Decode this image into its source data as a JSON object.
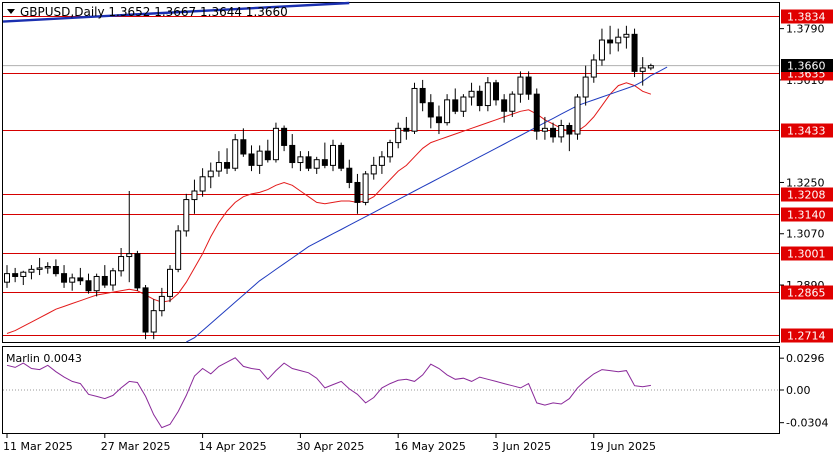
{
  "header": {
    "symbol_line": "GBPUSD,Daily  1.3652 1.3667 1.3644 1.3660"
  },
  "price_axis": {
    "ticks": [
      "1.3790",
      "1.3610",
      "1.3250",
      "1.3070",
      "1.2890"
    ],
    "current_price_label": "1.3660"
  },
  "indicator": {
    "title": "Marlin 0.0043",
    "ticks": [
      "0.0296",
      "0.00",
      "-0.0304"
    ]
  },
  "date_axis": {
    "labels": [
      "11 Mar 2025",
      "27 Mar 2025",
      "14 Apr 2025",
      "30 Apr 2025",
      "16 May 2025",
      "3 Jun 2025",
      "19 Jun 2025"
    ]
  },
  "colors": {
    "bull_candle": "#ffffff",
    "bear_candle": "#000000",
    "level_line": "#d50000",
    "level_label_bg": "#e00000",
    "ma_red": "#e31b1b",
    "ma_blue": "#1f3bbf",
    "trend_line": "#1a2fb0",
    "oscillator": "#8a2a9a"
  },
  "chart_data": [
    {
      "type": "candlestick",
      "title": "GBPUSD,Daily",
      "ylim": [
        1.269,
        1.388
      ],
      "horizontal_levels": [
        {
          "label": "1.3834",
          "value": 1.3834
        },
        {
          "label": "1.3635",
          "value": 1.3635
        },
        {
          "label": "1.3433",
          "value": 1.3433
        },
        {
          "label": "1.3208",
          "value": 1.3208
        },
        {
          "label": "1.3140",
          "value": 1.314
        },
        {
          "label": "1.3001",
          "value": 1.3001
        },
        {
          "label": "1.2865",
          "value": 1.2865
        },
        {
          "label": "1.2714",
          "value": 1.2714
        }
      ],
      "x_labels": [
        {
          "label": "11 Mar 2025",
          "index": 0
        },
        {
          "label": "27 Mar 2025",
          "index": 12
        },
        {
          "label": "14 Apr 2025",
          "index": 24
        },
        {
          "label": "30 Apr 2025",
          "index": 36
        },
        {
          "label": "16 May 2025",
          "index": 48
        },
        {
          "label": "3 Jun 2025",
          "index": 60
        },
        {
          "label": "19 Jun 2025",
          "index": 72
        }
      ],
      "trend_line": {
        "from": {
          "index": 0,
          "price": 1.3815
        },
        "to": {
          "index": 42,
          "price": 1.388
        }
      },
      "ohlc": [
        [
          1.29,
          1.296,
          1.288,
          1.293
        ],
        [
          1.293,
          1.295,
          1.29,
          1.292
        ],
        [
          1.292,
          1.294,
          1.289,
          1.2935
        ],
        [
          1.2935,
          1.296,
          1.291,
          1.2945
        ],
        [
          1.2945,
          1.2985,
          1.2925,
          1.295
        ],
        [
          1.295,
          1.297,
          1.293,
          1.2955
        ],
        [
          1.2955,
          1.298,
          1.292,
          1.293
        ],
        [
          1.293,
          1.296,
          1.288,
          1.29
        ],
        [
          1.29,
          1.293,
          1.287,
          1.2915
        ],
        [
          1.2915,
          1.295,
          1.289,
          1.2905
        ],
        [
          1.2905,
          1.293,
          1.286,
          1.287
        ],
        [
          1.287,
          1.293,
          1.285,
          1.292
        ],
        [
          1.292,
          1.296,
          1.288,
          1.289
        ],
        [
          1.289,
          1.295,
          1.287,
          1.294
        ],
        [
          1.294,
          1.302,
          1.292,
          1.299
        ],
        [
          1.299,
          1.322,
          1.29,
          1.3
        ],
        [
          1.3,
          1.301,
          1.287,
          1.288
        ],
        [
          1.288,
          1.289,
          1.27,
          1.2725
        ],
        [
          1.2725,
          1.284,
          1.27,
          1.28
        ],
        [
          1.28,
          1.288,
          1.278,
          1.285
        ],
        [
          1.285,
          1.296,
          1.283,
          1.2945
        ],
        [
          1.2945,
          1.31,
          1.2935,
          1.308
        ],
        [
          1.308,
          1.321,
          1.306,
          1.319
        ],
        [
          1.319,
          1.326,
          1.314,
          1.322
        ],
        [
          1.322,
          1.33,
          1.32,
          1.327
        ],
        [
          1.327,
          1.332,
          1.323,
          1.329
        ],
        [
          1.329,
          1.336,
          1.327,
          1.332
        ],
        [
          1.332,
          1.337,
          1.328,
          1.33
        ],
        [
          1.33,
          1.342,
          1.329,
          1.34
        ],
        [
          1.34,
          1.344,
          1.334,
          1.335
        ],
        [
          1.335,
          1.338,
          1.329,
          1.331
        ],
        [
          1.331,
          1.338,
          1.328,
          1.336
        ],
        [
          1.336,
          1.34,
          1.332,
          1.333
        ],
        [
          1.333,
          1.346,
          1.332,
          1.344
        ],
        [
          1.344,
          1.345,
          1.336,
          1.338
        ],
        [
          1.338,
          1.342,
          1.33,
          1.332
        ],
        [
          1.332,
          1.336,
          1.329,
          1.334
        ],
        [
          1.334,
          1.336,
          1.329,
          1.33
        ],
        [
          1.33,
          1.334,
          1.328,
          1.333
        ],
        [
          1.333,
          1.339,
          1.33,
          1.331
        ],
        [
          1.331,
          1.34,
          1.329,
          1.338
        ],
        [
          1.338,
          1.339,
          1.329,
          1.33
        ],
        [
          1.33,
          1.333,
          1.323,
          1.325
        ],
        [
          1.325,
          1.328,
          1.314,
          1.318
        ],
        [
          1.318,
          1.329,
          1.317,
          1.328
        ],
        [
          1.328,
          1.334,
          1.326,
          1.331
        ],
        [
          1.331,
          1.336,
          1.328,
          1.334
        ],
        [
          1.334,
          1.34,
          1.332,
          1.339
        ],
        [
          1.339,
          1.346,
          1.337,
          1.344
        ],
        [
          1.344,
          1.348,
          1.34,
          1.343
        ],
        [
          1.343,
          1.36,
          1.342,
          1.358
        ],
        [
          1.358,
          1.361,
          1.35,
          1.353
        ],
        [
          1.353,
          1.356,
          1.344,
          1.348
        ],
        [
          1.348,
          1.352,
          1.342,
          1.346
        ],
        [
          1.346,
          1.356,
          1.345,
          1.354
        ],
        [
          1.354,
          1.358,
          1.349,
          1.35
        ],
        [
          1.35,
          1.356,
          1.348,
          1.355
        ],
        [
          1.355,
          1.36,
          1.352,
          1.357
        ],
        [
          1.357,
          1.359,
          1.35,
          1.352
        ],
        [
          1.352,
          1.362,
          1.35,
          1.36
        ],
        [
          1.36,
          1.361,
          1.352,
          1.354
        ],
        [
          1.354,
          1.356,
          1.346,
          1.35
        ],
        [
          1.35,
          1.357,
          1.348,
          1.356
        ],
        [
          1.356,
          1.364,
          1.353,
          1.362
        ],
        [
          1.362,
          1.364,
          1.354,
          1.356
        ],
        [
          1.356,
          1.358,
          1.34,
          1.343
        ],
        [
          1.343,
          1.348,
          1.34,
          1.344
        ],
        [
          1.344,
          1.346,
          1.339,
          1.341
        ],
        [
          1.341,
          1.347,
          1.339,
          1.345
        ],
        [
          1.345,
          1.346,
          1.336,
          1.342
        ],
        [
          1.342,
          1.356,
          1.34,
          1.355
        ],
        [
          1.355,
          1.366,
          1.352,
          1.362
        ],
        [
          1.362,
          1.37,
          1.36,
          1.368
        ],
        [
          1.368,
          1.379,
          1.366,
          1.375
        ],
        [
          1.375,
          1.38,
          1.37,
          1.374
        ],
        [
          1.374,
          1.379,
          1.371,
          1.376
        ],
        [
          1.376,
          1.38,
          1.372,
          1.377
        ],
        [
          1.377,
          1.379,
          1.362,
          1.364
        ],
        [
          1.364,
          1.369,
          1.359,
          1.3652
        ],
        [
          1.3652,
          1.3667,
          1.3644,
          1.366
        ]
      ],
      "ma_red": [
        1.272,
        1.273,
        1.2745,
        1.276,
        1.2775,
        1.279,
        1.2805,
        1.2815,
        1.2825,
        1.2835,
        1.2845,
        1.2855,
        1.286,
        1.2865,
        1.287,
        1.2875,
        1.287,
        1.2855,
        1.284,
        1.283,
        1.2835,
        1.286,
        1.29,
        1.295,
        1.3,
        1.306,
        1.311,
        1.315,
        1.318,
        1.32,
        1.321,
        1.3215,
        1.3225,
        1.324,
        1.325,
        1.324,
        1.322,
        1.32,
        1.318,
        1.3175,
        1.318,
        1.3185,
        1.3185,
        1.318,
        1.3185,
        1.32,
        1.323,
        1.326,
        1.329,
        1.331,
        1.334,
        1.337,
        1.339,
        1.34,
        1.341,
        1.342,
        1.343,
        1.344,
        1.345,
        1.346,
        1.347,
        1.348,
        1.349,
        1.35,
        1.3505,
        1.349,
        1.347,
        1.3455,
        1.344,
        1.343,
        1.343,
        1.345,
        1.348,
        1.352,
        1.356,
        1.359,
        1.36,
        1.359,
        1.357,
        1.356
      ],
      "ma_blue_start_index": 22,
      "ma_blue": [
        1.268,
        1.2705,
        1.273,
        1.2755,
        1.278,
        1.2805,
        1.283,
        1.2855,
        1.288,
        1.2905,
        1.2925,
        1.2945,
        1.2965,
        1.2985,
        1.3005,
        1.3025,
        1.304,
        1.3055,
        1.307,
        1.3085,
        1.31,
        1.3115,
        1.313,
        1.3145,
        1.316,
        1.3175,
        1.319,
        1.3205,
        1.322,
        1.3235,
        1.325,
        1.3265,
        1.328,
        1.3295,
        1.331,
        1.3325,
        1.334,
        1.3355,
        1.337,
        1.3385,
        1.34,
        1.3415,
        1.343,
        1.3445,
        1.346,
        1.3475,
        1.349,
        1.3505,
        1.352,
        1.353,
        1.354,
        1.355,
        1.356,
        1.357,
        1.358,
        1.359,
        1.3605,
        1.3625,
        1.364,
        1.3655
      ]
    },
    {
      "type": "line",
      "title": "Marlin 0.0043",
      "ylim": [
        -0.04,
        0.04
      ],
      "series": [
        {
          "name": "Marlin",
          "values": [
            0.023,
            0.021,
            0.025,
            0.02,
            0.019,
            0.023,
            0.017,
            0.012,
            0.008,
            0.006,
            -0.004,
            -0.006,
            -0.008,
            -0.005,
            0.002,
            0.008,
            0.007,
            -0.006,
            -0.023,
            -0.035,
            -0.032,
            -0.02,
            -0.005,
            0.013,
            0.02,
            0.015,
            0.022,
            0.026,
            0.03,
            0.022,
            0.02,
            0.019,
            0.01,
            0.018,
            0.025,
            0.02,
            0.018,
            0.016,
            0.011,
            0.002,
            0.005,
            0.008,
            0.001,
            -0.004,
            -0.012,
            -0.007,
            0.002,
            0.006,
            0.009,
            0.01,
            0.008,
            0.014,
            0.024,
            0.02,
            0.014,
            0.01,
            0.011,
            0.008,
            0.012,
            0.01,
            0.008,
            0.006,
            0.004,
            0.002,
            0.006,
            -0.012,
            -0.014,
            -0.012,
            -0.013,
            -0.008,
            0.002,
            0.009,
            0.015,
            0.019,
            0.018,
            0.017,
            0.018,
            0.004,
            0.003,
            0.0043
          ]
        }
      ]
    }
  ]
}
